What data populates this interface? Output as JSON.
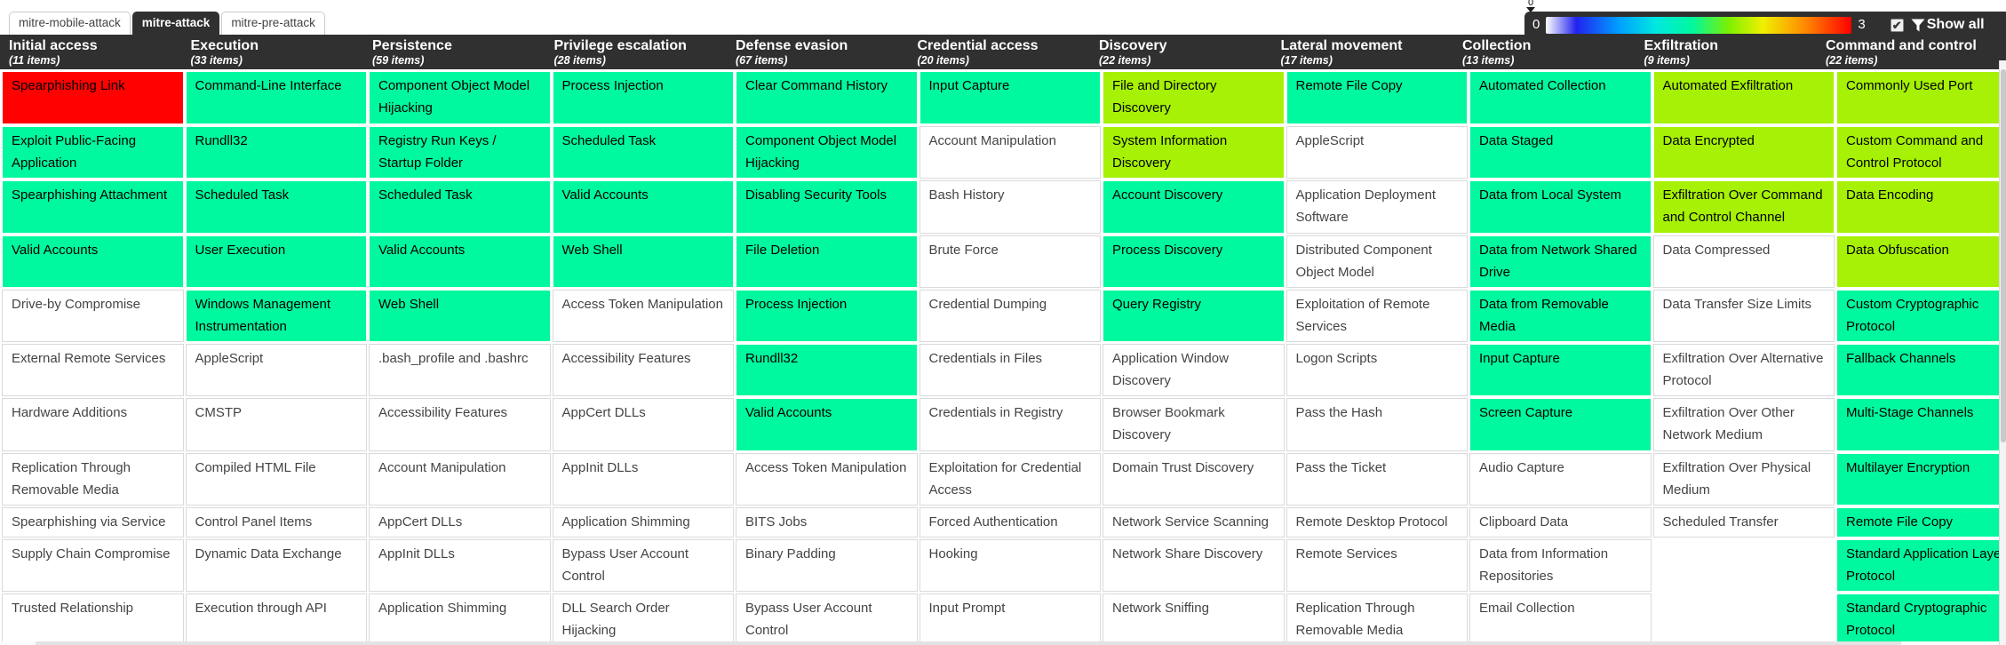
{
  "tabs": [
    {
      "label": "mitre-mobile-attack",
      "active": false
    },
    {
      "label": "mitre-attack",
      "active": true
    },
    {
      "label": "mitre-pre-attack",
      "active": false
    }
  ],
  "legend": {
    "handle_label": "0",
    "min_label": "0",
    "max_label": "3",
    "checkbox_checked": true,
    "checkmark_glyph": "✔",
    "filter_icon": "funnel-icon",
    "show_all_label": "Show all"
  },
  "colors": {
    "header_bg": "#303030",
    "score0": "#ffffff",
    "score1": "#00f89e",
    "score2": "#a6f105",
    "score3": "#ff0100"
  },
  "matrix": {
    "columns": [
      {
        "name": "Initial access",
        "items": "(11 items)",
        "cells": [
          {
            "t": "Spearphishing Link",
            "s": 3
          },
          {
            "t": "Exploit Public-Facing Application",
            "s": 1
          },
          {
            "t": "Spearphishing Attachment",
            "s": 1
          },
          {
            "t": "Valid Accounts",
            "s": 1
          },
          {
            "t": "Drive-by Compromise",
            "s": 0
          },
          {
            "t": "External Remote Services",
            "s": 0
          },
          {
            "t": "Hardware Additions",
            "s": 0
          },
          {
            "t": "Replication Through Removable Media",
            "s": 0
          },
          {
            "t": "Spearphishing via Service",
            "s": 0
          },
          {
            "t": "Supply Chain Compromise",
            "s": 0
          },
          {
            "t": "Trusted Relationship",
            "s": 0
          }
        ]
      },
      {
        "name": "Execution",
        "items": "(33 items)",
        "cells": [
          {
            "t": "Command-Line Interface",
            "s": 1
          },
          {
            "t": "Rundll32",
            "s": 1
          },
          {
            "t": "Scheduled Task",
            "s": 1
          },
          {
            "t": "User Execution",
            "s": 1
          },
          {
            "t": "Windows Management Instrumentation",
            "s": 1
          },
          {
            "t": "AppleScript",
            "s": 0
          },
          {
            "t": "CMSTP",
            "s": 0
          },
          {
            "t": "Compiled HTML File",
            "s": 0
          },
          {
            "t": "Control Panel Items",
            "s": 0
          },
          {
            "t": "Dynamic Data Exchange",
            "s": 0
          },
          {
            "t": "Execution through API",
            "s": 0
          }
        ]
      },
      {
        "name": "Persistence",
        "items": "(59 items)",
        "cells": [
          {
            "t": "Component Object Model Hijacking",
            "s": 1
          },
          {
            "t": "Registry Run Keys / Startup Folder",
            "s": 1
          },
          {
            "t": "Scheduled Task",
            "s": 1
          },
          {
            "t": "Valid Accounts",
            "s": 1
          },
          {
            "t": "Web Shell",
            "s": 1
          },
          {
            "t": ".bash_profile and .bashrc",
            "s": 0
          },
          {
            "t": "Accessibility Features",
            "s": 0
          },
          {
            "t": "Account Manipulation",
            "s": 0
          },
          {
            "t": "AppCert DLLs",
            "s": 0
          },
          {
            "t": "AppInit DLLs",
            "s": 0
          },
          {
            "t": "Application Shimming",
            "s": 0
          }
        ]
      },
      {
        "name": "Privilege escalation",
        "items": "(28 items)",
        "cells": [
          {
            "t": "Process Injection",
            "s": 1
          },
          {
            "t": "Scheduled Task",
            "s": 1
          },
          {
            "t": "Valid Accounts",
            "s": 1
          },
          {
            "t": "Web Shell",
            "s": 1
          },
          {
            "t": "Access Token Manipulation",
            "s": 0
          },
          {
            "t": "Accessibility Features",
            "s": 0
          },
          {
            "t": "AppCert DLLs",
            "s": 0
          },
          {
            "t": "AppInit DLLs",
            "s": 0
          },
          {
            "t": "Application Shimming",
            "s": 0
          },
          {
            "t": "Bypass User Account Control",
            "s": 0
          },
          {
            "t": "DLL Search Order Hijacking",
            "s": 0
          }
        ]
      },
      {
        "name": "Defense evasion",
        "items": "(67 items)",
        "cells": [
          {
            "t": "Clear Command History",
            "s": 1
          },
          {
            "t": "Component Object Model Hijacking",
            "s": 1
          },
          {
            "t": "Disabling Security Tools",
            "s": 1
          },
          {
            "t": "File Deletion",
            "s": 1
          },
          {
            "t": "Process Injection",
            "s": 1
          },
          {
            "t": "Rundll32",
            "s": 1
          },
          {
            "t": "Valid Accounts",
            "s": 1
          },
          {
            "t": "Access Token Manipulation",
            "s": 0
          },
          {
            "t": "BITS Jobs",
            "s": 0
          },
          {
            "t": "Binary Padding",
            "s": 0
          },
          {
            "t": "Bypass User Account Control",
            "s": 0
          }
        ]
      },
      {
        "name": "Credential access",
        "items": "(20 items)",
        "cells": [
          {
            "t": "Input Capture",
            "s": 1
          },
          {
            "t": "Account Manipulation",
            "s": 0
          },
          {
            "t": "Bash History",
            "s": 0
          },
          {
            "t": "Brute Force",
            "s": 0
          },
          {
            "t": "Credential Dumping",
            "s": 0
          },
          {
            "t": "Credentials in Files",
            "s": 0
          },
          {
            "t": "Credentials in Registry",
            "s": 0
          },
          {
            "t": "Exploitation for Credential Access",
            "s": 0
          },
          {
            "t": "Forced Authentication",
            "s": 0
          },
          {
            "t": "Hooking",
            "s": 0
          },
          {
            "t": "Input Prompt",
            "s": 0
          }
        ]
      },
      {
        "name": "Discovery",
        "items": "(22 items)",
        "cells": [
          {
            "t": "File and Directory Discovery",
            "s": 2
          },
          {
            "t": "System Information Discovery",
            "s": 2
          },
          {
            "t": "Account Discovery",
            "s": 1
          },
          {
            "t": "Process Discovery",
            "s": 1
          },
          {
            "t": "Query Registry",
            "s": 1
          },
          {
            "t": "Application Window Discovery",
            "s": 0
          },
          {
            "t": "Browser Bookmark Discovery",
            "s": 0
          },
          {
            "t": "Domain Trust Discovery",
            "s": 0
          },
          {
            "t": "Network Service Scanning",
            "s": 0
          },
          {
            "t": "Network Share Discovery",
            "s": 0
          },
          {
            "t": "Network Sniffing",
            "s": 0
          }
        ]
      },
      {
        "name": "Lateral movement",
        "items": "(17 items)",
        "cells": [
          {
            "t": "Remote File Copy",
            "s": 1
          },
          {
            "t": "AppleScript",
            "s": 0
          },
          {
            "t": "Application Deployment Software",
            "s": 0
          },
          {
            "t": "Distributed Component Object Model",
            "s": 0
          },
          {
            "t": "Exploitation of Remote Services",
            "s": 0
          },
          {
            "t": "Logon Scripts",
            "s": 0
          },
          {
            "t": "Pass the Hash",
            "s": 0
          },
          {
            "t": "Pass the Ticket",
            "s": 0
          },
          {
            "t": "Remote Desktop Protocol",
            "s": 0
          },
          {
            "t": "Remote Services",
            "s": 0
          },
          {
            "t": "Replication Through Removable Media",
            "s": 0
          }
        ]
      },
      {
        "name": "Collection",
        "items": "(13 items)",
        "cells": [
          {
            "t": "Automated Collection",
            "s": 1
          },
          {
            "t": "Data Staged",
            "s": 1
          },
          {
            "t": "Data from Local System",
            "s": 1
          },
          {
            "t": "Data from Network Shared Drive",
            "s": 1
          },
          {
            "t": "Data from Removable Media",
            "s": 1
          },
          {
            "t": "Input Capture",
            "s": 1
          },
          {
            "t": "Screen Capture",
            "s": 1
          },
          {
            "t": "Audio Capture",
            "s": 0
          },
          {
            "t": "Clipboard Data",
            "s": 0
          },
          {
            "t": "Data from Information Repositories",
            "s": 0
          },
          {
            "t": "Email Collection",
            "s": 0
          }
        ]
      },
      {
        "name": "Exfiltration",
        "items": "(9 items)",
        "cells": [
          {
            "t": "Automated Exfiltration",
            "s": 2
          },
          {
            "t": "Data Encrypted",
            "s": 2
          },
          {
            "t": "Exfiltration Over Command and Control Channel",
            "s": 2
          },
          {
            "t": "Data Compressed",
            "s": 0
          },
          {
            "t": "Data Transfer Size Limits",
            "s": 0
          },
          {
            "t": "Exfiltration Over Alternative Protocol",
            "s": 0
          },
          {
            "t": "Exfiltration Over Other Network Medium",
            "s": 0
          },
          {
            "t": "Exfiltration Over Physical Medium",
            "s": 0
          },
          {
            "t": "Scheduled Transfer",
            "s": 0
          },
          null,
          null
        ]
      },
      {
        "name": "Command and control",
        "items": "(22 items)",
        "cells": [
          {
            "t": "Commonly Used Port",
            "s": 2
          },
          {
            "t": "Custom Command and Control Protocol",
            "s": 2
          },
          {
            "t": "Data Encoding",
            "s": 2
          },
          {
            "t": "Data Obfuscation",
            "s": 2
          },
          {
            "t": "Custom Cryptographic Protocol",
            "s": 1
          },
          {
            "t": "Fallback Channels",
            "s": 1
          },
          {
            "t": "Multi-Stage Channels",
            "s": 1
          },
          {
            "t": "Multilayer Encryption",
            "s": 1
          },
          {
            "t": "Remote File Copy",
            "s": 1
          },
          {
            "t": "Standard Application Layer Protocol",
            "s": 1
          },
          {
            "t": "Standard Cryptographic Protocol",
            "s": 1
          }
        ]
      }
    ]
  }
}
